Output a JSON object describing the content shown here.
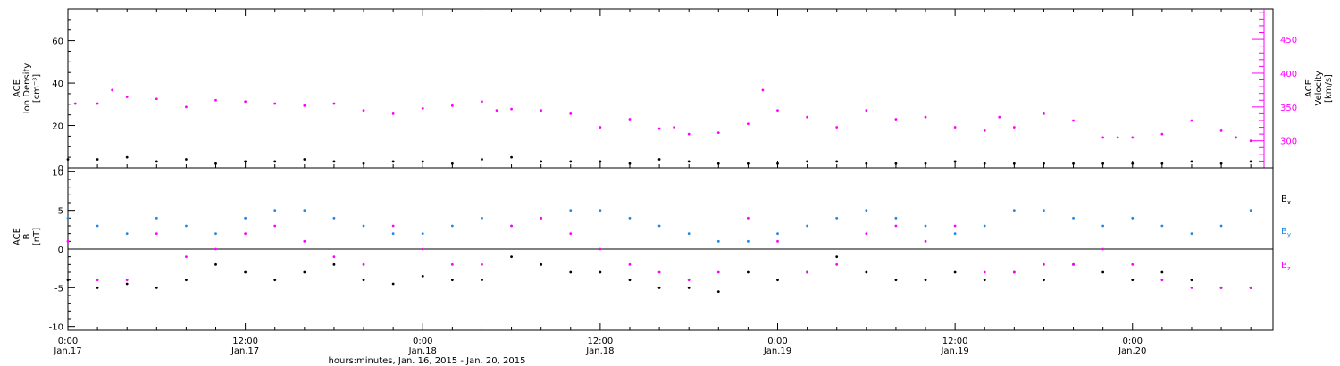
{
  "chart_data": [
    {
      "type": "scatter",
      "panel": "solar-wind",
      "ylabel_left_lines": [
        "ACE",
        "Ion Density",
        "[cm⁻³]"
      ],
      "ylabel_right_lines": [
        "ACE",
        "Velocity",
        "[km/s]"
      ],
      "y_left_ticks": [
        "0",
        "20",
        "40",
        "60"
      ],
      "y_left_lim": [
        0,
        75
      ],
      "y_right_ticks": [
        "300",
        "350",
        "400",
        "450"
      ],
      "y_right_lim": [
        260,
        495
      ],
      "x_lim_hours": [
        0,
        81.5
      ],
      "series": [
        {
          "axis": "right",
          "color": "#ff00ff",
          "x": [
            0.5,
            2,
            3,
            4,
            6,
            8,
            10,
            12,
            14,
            16,
            18,
            20,
            22,
            24,
            26,
            28,
            29,
            30,
            32,
            34,
            36,
            38,
            40,
            41,
            42,
            44,
            46,
            47,
            48,
            50,
            52,
            54,
            56,
            58,
            60,
            62,
            63,
            64,
            66,
            68,
            70,
            71,
            72,
            74,
            76,
            78,
            79,
            80
          ],
          "y": [
            355,
            355,
            375,
            365,
            362,
            350,
            360,
            358,
            355,
            352,
            355,
            345,
            340,
            348,
            352,
            358,
            345,
            347,
            345,
            340,
            320,
            332,
            318,
            320,
            310,
            312,
            325,
            375,
            345,
            335,
            320,
            345,
            332,
            335,
            320,
            315,
            335,
            320,
            340,
            330,
            305,
            305,
            305,
            310,
            330,
            315,
            305,
            300
          ]
        },
        {
          "axis": "left",
          "color": "#000000",
          "x": [
            0,
            2,
            4,
            6,
            8,
            10,
            12,
            14,
            16,
            18,
            20,
            22,
            24,
            26,
            28,
            30,
            32,
            34,
            36,
            38,
            40,
            42,
            44,
            46,
            48,
            50,
            52,
            54,
            56,
            58,
            60,
            62,
            64,
            66,
            68,
            70,
            72,
            74,
            76,
            78,
            80
          ],
          "y": [
            4,
            4,
            5,
            3,
            4,
            2,
            3,
            3,
            4,
            3,
            2,
            3,
            3,
            2,
            4,
            5,
            3,
            3,
            3,
            2,
            4,
            3,
            2,
            2,
            2,
            3,
            3,
            2,
            2,
            2,
            3,
            2,
            2,
            2,
            2,
            2,
            2,
            2,
            3,
            2,
            3
          ]
        }
      ]
    },
    {
      "type": "scatter",
      "panel": "magnetic-field",
      "ylabel_left_lines": [
        "ACE",
        "B",
        "[nT]"
      ],
      "y_left_ticks": [
        "-10",
        "-5",
        "0",
        "5",
        "10"
      ],
      "y_left_lim": [
        -10.5,
        10.5
      ],
      "x_lim_hours": [
        0,
        81.5
      ],
      "zero_line": true,
      "series": [
        {
          "name": "B",
          "sub": "x",
          "color": "#000000",
          "x": [
            0,
            2,
            4,
            6,
            8,
            10,
            12,
            14,
            16,
            18,
            20,
            22,
            24,
            26,
            28,
            30,
            32,
            34,
            36,
            38,
            40,
            42,
            44,
            46,
            48,
            50,
            52,
            54,
            56,
            58,
            60,
            62,
            64,
            66,
            68,
            70,
            72,
            74,
            76,
            78,
            80
          ],
          "y": [
            -4,
            -5,
            -4.5,
            -5,
            -4,
            -2,
            -3,
            -4,
            -3,
            -2,
            -4,
            -4.5,
            -3.5,
            -4,
            -4,
            -1,
            -2,
            -3,
            -3,
            -4,
            -5,
            -5,
            -5.5,
            -3,
            -4,
            -3,
            -1,
            -3,
            -4,
            -4,
            -3,
            -4,
            -3,
            -4,
            -2,
            -3,
            -4,
            -3,
            -4,
            -5,
            -5
          ]
        },
        {
          "name": "B",
          "sub": "y",
          "color": "#1e88e5",
          "x": [
            0,
            2,
            4,
            6,
            8,
            10,
            12,
            14,
            16,
            18,
            20,
            22,
            24,
            26,
            28,
            30,
            32,
            34,
            36,
            38,
            40,
            42,
            44,
            46,
            48,
            50,
            52,
            54,
            56,
            58,
            60,
            62,
            64,
            66,
            68,
            70,
            72,
            74,
            76,
            78,
            80
          ],
          "y": [
            4,
            3,
            2,
            4,
            3,
            2,
            4,
            5,
            5,
            4,
            3,
            2,
            2,
            3,
            4,
            3,
            4,
            5,
            5,
            4,
            3,
            2,
            1,
            1,
            2,
            3,
            4,
            5,
            4,
            3,
            2,
            3,
            5,
            5,
            4,
            3,
            4,
            3,
            2,
            3,
            5
          ]
        },
        {
          "name": "B",
          "sub": "z",
          "color": "#ff00ff",
          "x": [
            0,
            2,
            4,
            6,
            8,
            10,
            12,
            14,
            16,
            18,
            20,
            22,
            24,
            26,
            28,
            30,
            32,
            34,
            36,
            38,
            40,
            42,
            44,
            46,
            48,
            50,
            52,
            54,
            56,
            58,
            60,
            62,
            64,
            66,
            68,
            70,
            72,
            74,
            76,
            78,
            80
          ],
          "y": [
            1,
            -4,
            -4,
            2,
            -1,
            0,
            2,
            3,
            1,
            -1,
            -2,
            3,
            0,
            -2,
            -2,
            3,
            4,
            2,
            0,
            -2,
            -3,
            -4,
            -3,
            4,
            1,
            -3,
            -2,
            2,
            3,
            1,
            3,
            -3,
            -3,
            -2,
            -2,
            0,
            -2,
            -4,
            -5,
            -5,
            -5
          ]
        }
      ]
    }
  ],
  "x_axis": {
    "ticks": [
      {
        "hours": 0,
        "time": "0:00",
        "day": "Jan.17"
      },
      {
        "hours": 12,
        "time": "12:00",
        "day": "Jan.17"
      },
      {
        "hours": 24,
        "time": "0:00",
        "day": "Jan.18"
      },
      {
        "hours": 36,
        "time": "12:00",
        "day": "Jan.18"
      },
      {
        "hours": 48,
        "time": "0:00",
        "day": "Jan.19"
      },
      {
        "hours": 60,
        "time": "12:00",
        "day": "Jan.19"
      },
      {
        "hours": 72,
        "time": "0:00",
        "day": "Jan.20"
      }
    ],
    "label": "hours:minutes, Jan. 16, 2015 - Jan. 20, 2015"
  },
  "colors": {
    "density": "#000000",
    "velocity": "#ff00ff",
    "bx": "#000000",
    "by": "#1e88e5",
    "bz": "#ff00ff"
  }
}
